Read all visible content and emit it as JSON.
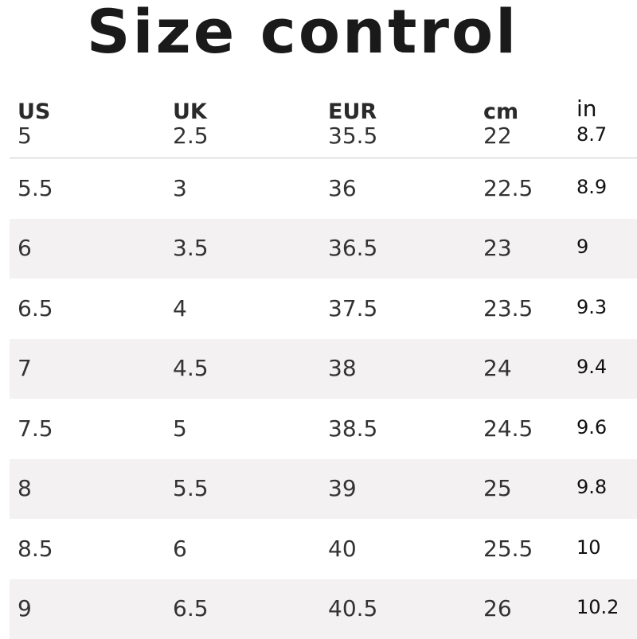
{
  "title": "Size control",
  "columns": [
    "US",
    "UK",
    "EUR",
    "cm",
    "in"
  ],
  "first_row": [
    "5",
    "2.5",
    "35.5",
    "22",
    "8.7"
  ],
  "rows": [
    [
      "5.5",
      "3",
      "36",
      "22.5",
      "8.9"
    ],
    [
      "6",
      "3.5",
      "36.5",
      "23",
      "9"
    ],
    [
      "6.5",
      "4",
      "37.5",
      "23.5",
      "9.3"
    ],
    [
      "7",
      "4.5",
      "38",
      "24",
      "9.4"
    ],
    [
      "7.5",
      "5",
      "38.5",
      "24.5",
      "9.6"
    ],
    [
      "8",
      "5.5",
      "39",
      "25",
      "9.8"
    ],
    [
      "8.5",
      "6",
      "40",
      "25.5",
      "10"
    ],
    [
      "9",
      "6.5",
      "40.5",
      "26",
      "10.2"
    ]
  ],
  "colors": {
    "row_shade": "#f3f1f1",
    "divider": "#c8c8c8",
    "text": "#333333"
  }
}
